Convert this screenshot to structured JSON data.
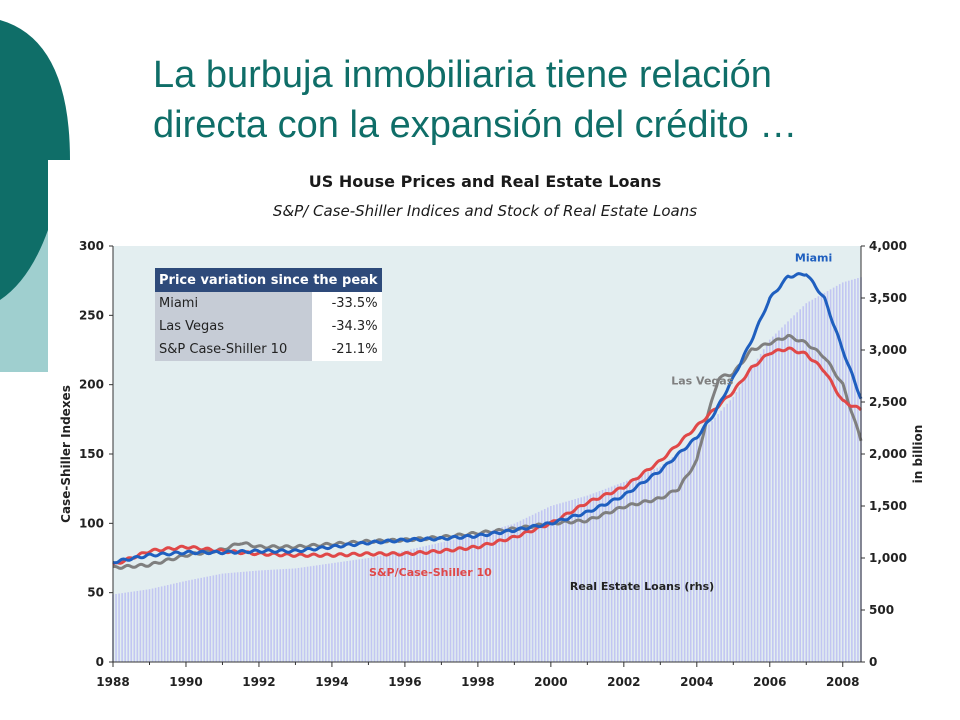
{
  "slide": {
    "title_line1": "La burbuja inmobiliaria tiene relación",
    "title_line2": "directa con la expansión del crédito …"
  },
  "colors": {
    "title": "#0f6e68",
    "deco_dark": "#0f6e68",
    "deco_light": "#9fcfcf",
    "plot_bg": "#e3eef0",
    "loans_bar": "#c2c6f2",
    "miami": "#1f5fbf",
    "las_vegas": "#7f7f7f",
    "case_shiller_10": "#e04848",
    "table_header": "#2e4a7a",
    "table_name_cell": "#c6ccd6"
  },
  "table": {
    "header": "Price variation since the peak",
    "rows": [
      {
        "name": "Miami",
        "value": "-33.5%"
      },
      {
        "name": "Las Vegas",
        "value": "-34.3%"
      },
      {
        "name": "S&P Case-Shiller 10",
        "value": "-21.1%"
      }
    ]
  },
  "chart_data": {
    "type": "line",
    "title": "US House Prices and Real Estate Loans",
    "subtitle": "S&P/ Case-Shiller Indices and Stock of Real Estate Loans",
    "ylabel": "Case-Shiller Indexes",
    "y2label": "in billion",
    "xlim": [
      1988,
      2008.5
    ],
    "ylim": [
      0,
      300
    ],
    "y2lim": [
      0,
      4000
    ],
    "x_ticks": [
      "1988",
      "1990",
      "1992",
      "1994",
      "1996",
      "1998",
      "2000",
      "2002",
      "2004",
      "2006",
      "2008"
    ],
    "y_ticks": [
      "0",
      "50",
      "100",
      "150",
      "200",
      "250",
      "300"
    ],
    "y2_ticks": [
      "0",
      "500",
      "1,000",
      "1,500",
      "2,000",
      "2,500",
      "3,000",
      "3,500",
      "4,000"
    ],
    "grid": false,
    "annotations": [
      {
        "text": "Miami",
        "series": "miami"
      },
      {
        "text": "Las Vegas",
        "series": "las_vegas"
      },
      {
        "text": "S&P/Case-Shiller 10",
        "series": "case_shiller_10"
      },
      {
        "text": "Real Estate Loans (rhs)",
        "series": "loans"
      }
    ],
    "loans": {
      "axis": "right",
      "type": "bar",
      "x": [
        1988,
        1989,
        1990,
        1991,
        1992,
        1993,
        1994,
        1995,
        1996,
        1997,
        1998,
        1999,
        2000,
        2001,
        2002,
        2003,
        2004,
        2005,
        2006,
        2007,
        2008,
        2008.5
      ],
      "values": [
        650,
        700,
        780,
        850,
        880,
        900,
        950,
        1000,
        1070,
        1150,
        1230,
        1330,
        1500,
        1600,
        1730,
        1880,
        2150,
        2550,
        3100,
        3450,
        3650,
        3700
      ]
    },
    "series": [
      {
        "key": "miami",
        "axis": "left",
        "x": [
          1988,
          1989,
          1990,
          1991,
          1992,
          1993,
          1994,
          1995,
          1996,
          1997,
          1998,
          1999,
          2000,
          2001,
          2002,
          2003,
          2004,
          2004.5,
          2005,
          2005.5,
          2006,
          2006.5,
          2007,
          2007.5,
          2008,
          2008.5
        ],
        "values": [
          72,
          77,
          79,
          79,
          80,
          80,
          83,
          86,
          88,
          89,
          91,
          95,
          100,
          108,
          120,
          138,
          162,
          180,
          205,
          232,
          262,
          278,
          280,
          262,
          225,
          190
        ]
      },
      {
        "key": "las_vegas",
        "axis": "left",
        "x": [
          1988,
          1989,
          1990,
          1991,
          1991.5,
          1992,
          1993,
          1994,
          1995,
          1996,
          1997,
          1998,
          1999,
          2000,
          2001,
          2002,
          2003,
          2003.5,
          2004,
          2004.3,
          2004.6,
          2005,
          2005.5,
          2006,
          2006.5,
          2007,
          2007.5,
          2008,
          2008.5
        ],
        "values": [
          68,
          70,
          77,
          81,
          86,
          83,
          83,
          85,
          87,
          88,
          90,
          93,
          96,
          100,
          102,
          112,
          118,
          125,
          145,
          178,
          205,
          208,
          225,
          230,
          235,
          230,
          220,
          200,
          160
        ]
      },
      {
        "key": "case_shiller_10",
        "axis": "left",
        "x": [
          1988,
          1989,
          1990,
          1991,
          1992,
          1993,
          1994,
          1995,
          1996,
          1997,
          1998,
          1999,
          2000,
          2001,
          2002,
          2003,
          2004,
          2005,
          2005.5,
          2006,
          2006.5,
          2007,
          2007.5,
          2008,
          2008.5
        ],
        "values": [
          70,
          80,
          83,
          80,
          78,
          77,
          77,
          78,
          78,
          80,
          83,
          90,
          100,
          115,
          126,
          145,
          170,
          195,
          212,
          223,
          226,
          222,
          210,
          188,
          182
        ]
      }
    ]
  }
}
